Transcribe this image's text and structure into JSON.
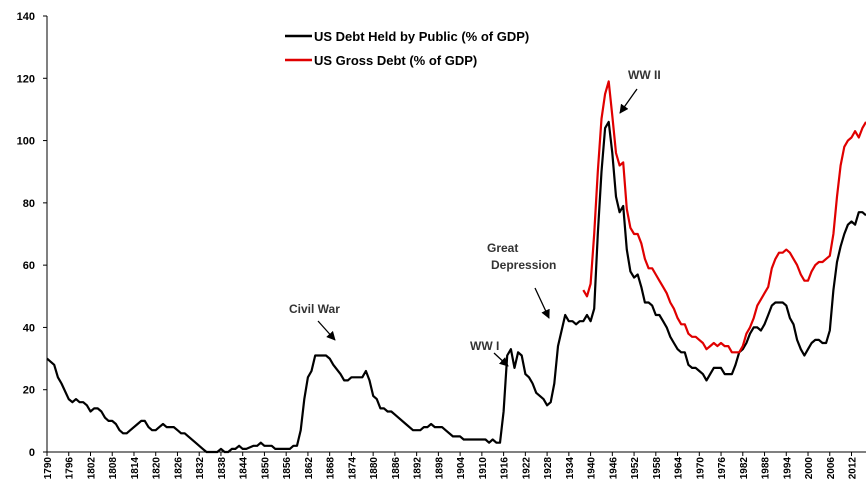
{
  "chart_data": {
    "type": "line",
    "xlim": [
      1790,
      2016
    ],
    "xticks": [
      1790,
      1796,
      1802,
      1808,
      1814,
      1820,
      1826,
      1832,
      1838,
      1844,
      1850,
      1856,
      1862,
      1868,
      1874,
      1880,
      1886,
      1892,
      1898,
      1904,
      1910,
      1916,
      1922,
      1928,
      1934,
      1940,
      1946,
      1952,
      1958,
      1964,
      1970,
      1976,
      1982,
      1988,
      1994,
      2000,
      2006,
      2012
    ],
    "ylim": [
      0,
      140
    ],
    "yticks": [
      0,
      20,
      40,
      60,
      80,
      100,
      120,
      140
    ],
    "grid": false,
    "legend": "upper center",
    "series": [
      {
        "name": "US Debt Held by Public (% of GDP)",
        "color": "#000000",
        "x": [
          1790,
          1792,
          1793,
          1794,
          1796,
          1797,
          1798,
          1799,
          1800,
          1801,
          1802,
          1803,
          1804,
          1805,
          1806,
          1807,
          1808,
          1809,
          1810,
          1811,
          1812,
          1813,
          1815,
          1816,
          1817,
          1818,
          1819,
          1820,
          1821,
          1822,
          1823,
          1825,
          1826,
          1827,
          1828,
          1829,
          1831,
          1833,
          1834,
          1837,
          1838,
          1839,
          1840,
          1841,
          1842,
          1843,
          1844,
          1845,
          1847,
          1848,
          1849,
          1850,
          1852,
          1853,
          1855,
          1857,
          1858,
          1859,
          1860,
          1861,
          1862,
          1863,
          1864,
          1867,
          1868,
          1869,
          1871,
          1872,
          1873,
          1874,
          1877,
          1878,
          1879,
          1880,
          1881,
          1882,
          1883,
          1884,
          1885,
          1886,
          1887,
          1889,
          1891,
          1893,
          1894,
          1895,
          1896,
          1897,
          1899,
          1900,
          1902,
          1904,
          1905,
          1911,
          1912,
          1913,
          1914,
          1915,
          1916,
          1917,
          1918,
          1919,
          1920,
          1921,
          1922,
          1923,
          1924,
          1925,
          1927,
          1928,
          1929,
          1930,
          1931,
          1933,
          1934,
          1935,
          1936,
          1937,
          1938,
          1939,
          1940,
          1941,
          1942,
          1943,
          1944,
          1945,
          1946,
          1947,
          1948,
          1949,
          1950,
          1951,
          1952,
          1953,
          1954,
          1955,
          1956,
          1957,
          1958,
          1959,
          1960,
          1961,
          1962,
          1963,
          1964,
          1965,
          1966,
          1967,
          1968,
          1969,
          1970,
          1971,
          1972,
          1973,
          1974,
          1975,
          1976,
          1977,
          1978,
          1979,
          1980,
          1981,
          1982,
          1983,
          1984,
          1985,
          1986,
          1987,
          1988,
          1989,
          1990,
          1991,
          1992,
          1993,
          1994,
          1995,
          1996,
          1997,
          1998,
          1999,
          2000,
          2001,
          2002,
          2003,
          2004,
          2005,
          2006,
          2007,
          2008,
          2009,
          2010,
          2011,
          2012,
          2013,
          2014,
          2015,
          2016
        ],
        "values": [
          30,
          28,
          24,
          22,
          17,
          16,
          17,
          16,
          16,
          15,
          13,
          14,
          14,
          13,
          11,
          10,
          10,
          9,
          7,
          6,
          6,
          7,
          9,
          10,
          10,
          8,
          7,
          7,
          8,
          9,
          8,
          8,
          7,
          6,
          6,
          5,
          3,
          1,
          0,
          0,
          1,
          0,
          0,
          1,
          1,
          2,
          1,
          1,
          2,
          2,
          3,
          2,
          2,
          1,
          1,
          1,
          2,
          2,
          7,
          17,
          24,
          26,
          31,
          31,
          30,
          28,
          25,
          23,
          23,
          24,
          24,
          26,
          23,
          18,
          17,
          14,
          14,
          13,
          13,
          12,
          11,
          9,
          7,
          7,
          8,
          8,
          9,
          8,
          8,
          7,
          5,
          5,
          4,
          4,
          3,
          4,
          3,
          3,
          13,
          31,
          33,
          27,
          32,
          31,
          25,
          24,
          22,
          19,
          17,
          15,
          16,
          22,
          34,
          44,
          42,
          42,
          41,
          42,
          42,
          44,
          42,
          46,
          70,
          90,
          104,
          106,
          96,
          82,
          77,
          79,
          65,
          58,
          56,
          57,
          53,
          48,
          48,
          47,
          44,
          44,
          42,
          40,
          37,
          35,
          33,
          32,
          32,
          28,
          27,
          27,
          26,
          25,
          23,
          25,
          27,
          27,
          27,
          25,
          25,
          25,
          28,
          32,
          33,
          35,
          38,
          40,
          40,
          39,
          41,
          44,
          47,
          48,
          48,
          48,
          47,
          43,
          41,
          36,
          33,
          31,
          33,
          35,
          36,
          36,
          35,
          35,
          39,
          52,
          61,
          66,
          70,
          73,
          74,
          73,
          77,
          77,
          76
        ]
      },
      {
        "name": "US Gross Debt (% of GDP)",
        "color": "#e00000",
        "x": [
          1938,
          1939,
          1940,
          1941,
          1942,
          1943,
          1944,
          1945,
          1946,
          1947,
          1948,
          1949,
          1950,
          1951,
          1952,
          1953,
          1954,
          1955,
          1956,
          1957,
          1958,
          1959,
          1960,
          1961,
          1962,
          1963,
          1964,
          1965,
          1966,
          1967,
          1968,
          1969,
          1970,
          1971,
          1972,
          1973,
          1974,
          1975,
          1976,
          1977,
          1978,
          1979,
          1980,
          1981,
          1982,
          1983,
          1984,
          1985,
          1986,
          1987,
          1988,
          1989,
          1990,
          1991,
          1992,
          1993,
          1994,
          1995,
          1996,
          1997,
          1998,
          1999,
          2000,
          2001,
          2002,
          2003,
          2004,
          2005,
          2006,
          2007,
          2008,
          2009,
          2010,
          2011,
          2012,
          2013,
          2014,
          2015,
          2016
        ],
        "values": [
          52,
          50,
          54,
          70,
          90,
          107,
          115,
          119,
          108,
          96,
          92,
          93,
          78,
          72,
          70,
          70,
          67,
          62,
          59,
          59,
          57,
          55,
          53,
          51,
          48,
          46,
          43,
          41,
          41,
          38,
          37,
          37,
          36,
          35,
          33,
          34,
          35,
          34,
          35,
          34,
          34,
          32,
          32,
          32,
          34,
          38,
          40,
          43,
          47,
          49,
          51,
          53,
          59,
          62,
          64,
          64,
          65,
          64,
          62,
          60,
          57,
          55,
          55,
          58,
          60,
          61,
          61,
          62,
          63,
          70,
          82,
          92,
          98,
          100,
          101,
          103,
          101,
          104,
          106
        ]
      }
    ],
    "annotations": [
      {
        "lines": [
          "Civil War"
        ]
      },
      {
        "lines": [
          "WW I"
        ]
      },
      {
        "lines": [
          "Great",
          "Depression"
        ]
      },
      {
        "lines": [
          "WW II"
        ]
      }
    ]
  }
}
